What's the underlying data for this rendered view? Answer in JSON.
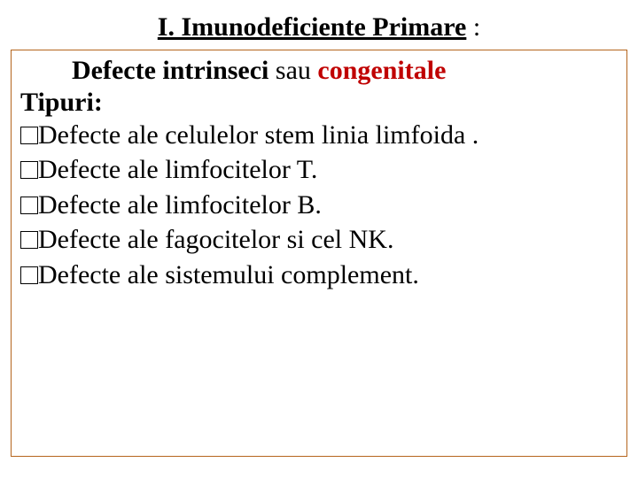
{
  "title": {
    "main_text": "I. Imunodeficiente Primare",
    "colon": " :",
    "color": "#000000",
    "fontsize": 30
  },
  "content": {
    "subtitle_bold": "Defecte intrinseci",
    "subtitle_plain": "  sau ",
    "subtitle_red_bold": "congenitale",
    "types_label": "Tipuri:",
    "bullets": [
      "Defecte ale celulelor stem linia limfoida .",
      "Defecte ale  limfocitelor T.",
      "Defecte ale limfocitelor B.",
      "Defecte ale fagocitelor si cel NK.",
      "Defecte ale sistemului complement."
    ]
  },
  "styling": {
    "background_color": "#ffffff",
    "border_color": "#b5651d",
    "text_color": "#000000",
    "red_color": "#c00000",
    "body_fontsize": 30,
    "font_family": "Times New Roman"
  }
}
